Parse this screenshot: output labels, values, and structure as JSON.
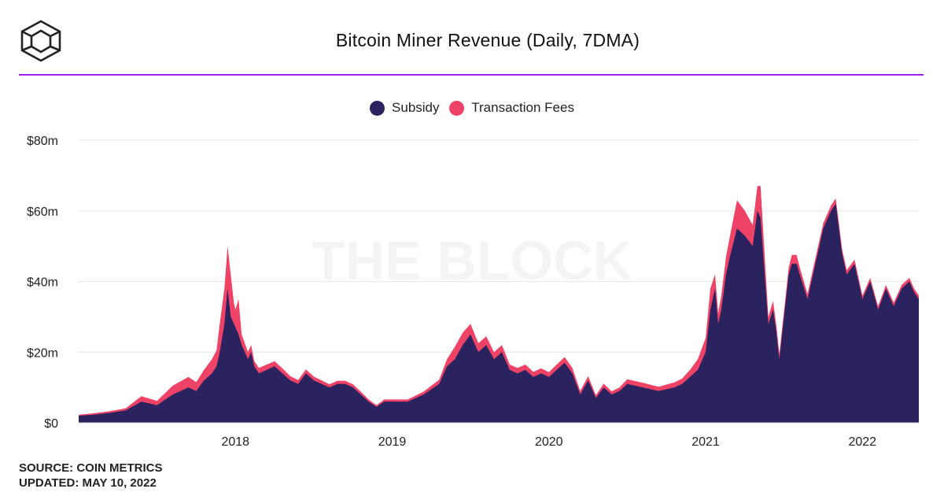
{
  "header": {
    "title": "Bitcoin Miner Revenue (Daily, 7DMA)"
  },
  "watermark": "THE BLOCK",
  "footer": {
    "source": "SOURCE: COIN METRICS",
    "updated": "UPDATED: MAY 10, 2022"
  },
  "colors": {
    "subsidy": "#2b2360",
    "fees": "#ee4266",
    "grid": "#e6e6e6",
    "accent": "#a020f0"
  },
  "chart_data": {
    "type": "area",
    "stacked": true,
    "x": [
      2017.0,
      2017.1,
      2017.2,
      2017.3,
      2017.4,
      2017.5,
      2017.6,
      2017.7,
      2017.75,
      2017.8,
      2017.85,
      2017.88,
      2017.9,
      2017.93,
      2017.95,
      2017.97,
      2017.99,
      2018.0,
      2018.02,
      2018.04,
      2018.06,
      2018.08,
      2018.1,
      2018.12,
      2018.15,
      2018.2,
      2018.25,
      2018.3,
      2018.35,
      2018.4,
      2018.45,
      2018.5,
      2018.55,
      2018.6,
      2018.65,
      2018.7,
      2018.75,
      2018.8,
      2018.85,
      2018.9,
      2018.95,
      2019.0,
      2019.1,
      2019.2,
      2019.3,
      2019.35,
      2019.4,
      2019.45,
      2019.5,
      2019.55,
      2019.6,
      2019.65,
      2019.7,
      2019.75,
      2019.8,
      2019.85,
      2019.9,
      2019.95,
      2020.0,
      2020.05,
      2020.1,
      2020.15,
      2020.2,
      2020.25,
      2020.3,
      2020.35,
      2020.4,
      2020.45,
      2020.5,
      2020.6,
      2020.7,
      2020.8,
      2020.85,
      2020.9,
      2020.95,
      2021.0,
      2021.03,
      2021.06,
      2021.08,
      2021.1,
      2021.13,
      2021.16,
      2021.2,
      2021.25,
      2021.3,
      2021.33,
      2021.35,
      2021.38,
      2021.4,
      2021.43,
      2021.45,
      2021.47,
      2021.5,
      2021.53,
      2021.55,
      2021.58,
      2021.6,
      2021.65,
      2021.7,
      2021.75,
      2021.8,
      2021.83,
      2021.85,
      2021.87,
      2021.9,
      2021.95,
      2022.0,
      2022.05,
      2022.1,
      2022.15,
      2022.2,
      2022.25,
      2022.3,
      2022.33,
      2022.36
    ],
    "series": [
      {
        "name": "Subsidy",
        "values": [
          2.0,
          2.3,
          2.8,
          3.5,
          6,
          5,
          8,
          10,
          9,
          12,
          14,
          16,
          20,
          28,
          38,
          30,
          28,
          27,
          25,
          22,
          20,
          18,
          20,
          16,
          14,
          15,
          16,
          14,
          12,
          11,
          14,
          12,
          11,
          10,
          11,
          11,
          10,
          8,
          6,
          4.5,
          6,
          6,
          6,
          8,
          11,
          16,
          18,
          22,
          25,
          20,
          22,
          18,
          20,
          15,
          14,
          15,
          13,
          14,
          13,
          15,
          17,
          14,
          8,
          12,
          7,
          10,
          8,
          9,
          11,
          10,
          9,
          10,
          11,
          13,
          15,
          20,
          32,
          38,
          28,
          32,
          42,
          48,
          55,
          53,
          50,
          60,
          58,
          40,
          28,
          32,
          26,
          18,
          30,
          42,
          45,
          45,
          42,
          35,
          45,
          55,
          60,
          62,
          55,
          48,
          42,
          45,
          35,
          40,
          32,
          38,
          33,
          38,
          40,
          37,
          35
        ]
      },
      {
        "name": "Transaction Fees",
        "values": [
          0.3,
          0.4,
          0.5,
          0.6,
          1.5,
          1.2,
          2.5,
          3,
          2.5,
          3,
          4,
          4.5,
          8,
          10,
          12,
          12,
          6,
          5,
          10,
          3,
          2.5,
          2,
          2,
          1.5,
          1.5,
          1.5,
          1.4,
          1.4,
          1.2,
          1.1,
          1.1,
          1.1,
          1.0,
          0.9,
          0.9,
          0.9,
          0.9,
          0.8,
          0.6,
          0.5,
          0.6,
          0.6,
          0.6,
          0.8,
          1.2,
          2,
          3.5,
          3.5,
          3,
          2.5,
          2.5,
          2,
          2,
          1.5,
          1.5,
          1.5,
          1.4,
          1.4,
          1.3,
          1.5,
          1.6,
          1.5,
          1.0,
          1.2,
          0.8,
          1.1,
          0.9,
          1.0,
          1.3,
          1.3,
          1.2,
          1.4,
          1.5,
          2,
          3,
          4,
          6,
          4,
          3,
          4,
          5,
          6,
          8,
          7,
          6,
          7,
          9,
          5,
          2,
          2.5,
          2,
          1.5,
          1.5,
          2,
          2.5,
          2.5,
          2,
          1.5,
          1.5,
          1.5,
          1.5,
          1.5,
          1.5,
          1.2,
          1.2,
          1.2,
          1,
          1,
          1,
          1,
          1,
          1,
          1,
          1,
          1
        ]
      }
    ],
    "x_ticks": [
      2018,
      2019,
      2020,
      2021,
      2022
    ],
    "x_tick_labels": [
      "2018",
      "2019",
      "2020",
      "2021",
      "2022"
    ],
    "y_ticks": [
      0,
      20,
      40,
      60,
      80
    ],
    "y_tick_labels": [
      "$0",
      "$20m",
      "$40m",
      "$60m",
      "$80m"
    ],
    "xlim": [
      2017.0,
      2022.36
    ],
    "ylim": [
      0,
      80
    ],
    "grid": true,
    "legend_position": "top-center"
  }
}
